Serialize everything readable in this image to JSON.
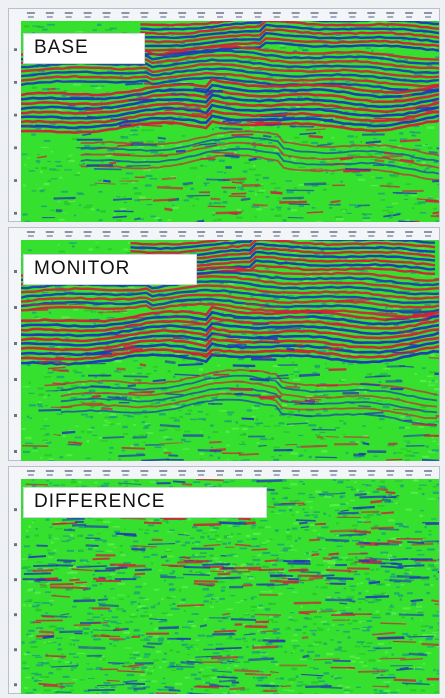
{
  "panels": {
    "base": {
      "label": "BASE"
    },
    "monitor": {
      "label": "MONITOR"
    },
    "difference": {
      "label": "DIFFERENCE"
    }
  },
  "colors": {
    "background": "#35e02e",
    "positive": "#d0213a",
    "negative": "#2036b8",
    "noise": "#1aa07a"
  }
}
